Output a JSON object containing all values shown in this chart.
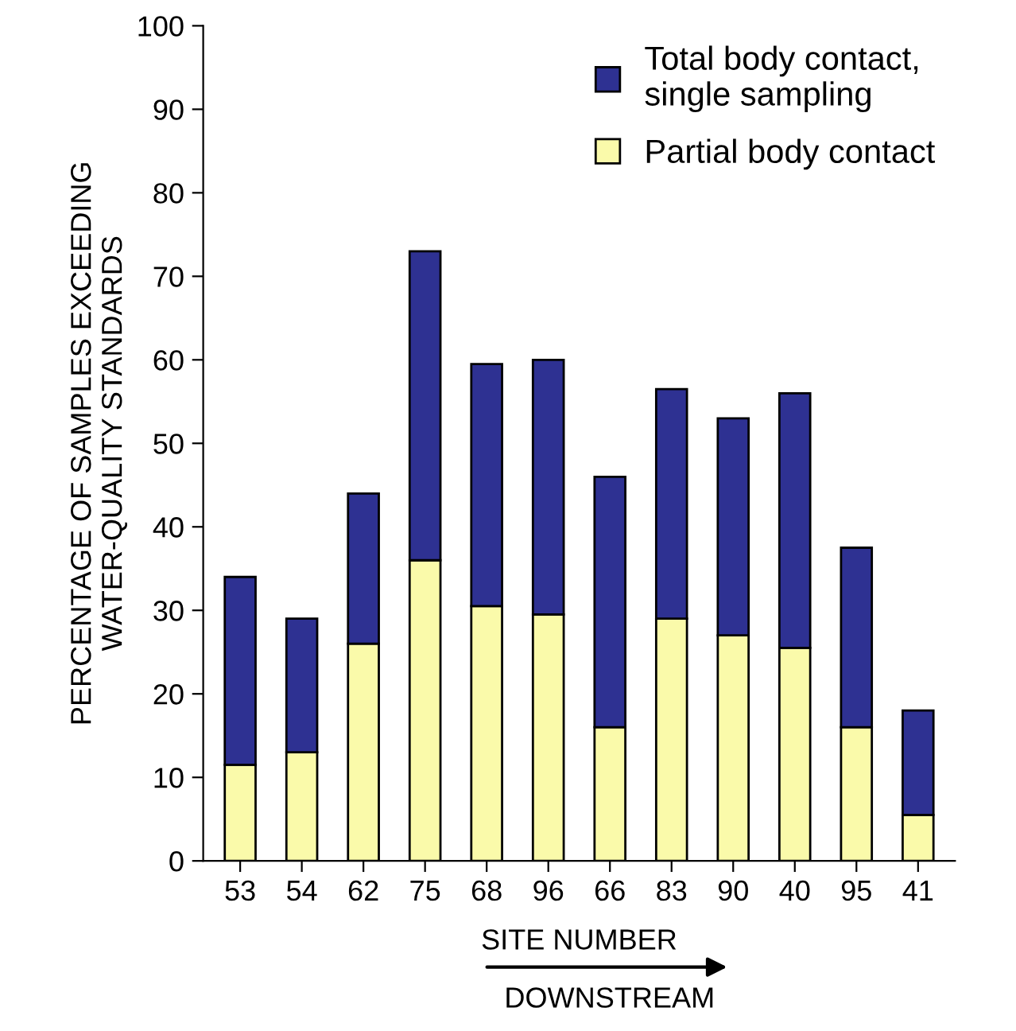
{
  "chart_data": {
    "type": "bar",
    "stacked": true,
    "xlabel": "SITE NUMBER",
    "ylabel": "PERCENTAGE OF SAMPLES EXCEEDING\nWATER-QUALITY STANDARDS",
    "categories": [
      "53",
      "54",
      "62",
      "75",
      "68",
      "96",
      "66",
      "83",
      "90",
      "40",
      "95",
      "41"
    ],
    "series": [
      {
        "name": "Partial body contact",
        "color": "#fafaaa",
        "values": [
          11.5,
          13,
          26,
          36,
          30.5,
          29.5,
          16,
          29,
          27,
          25.5,
          16,
          5.5
        ]
      },
      {
        "name": "Total body contact,\nsingle sampling",
        "color": "#2e3192",
        "values": [
          22.5,
          16,
          18,
          37,
          29,
          30.5,
          30,
          27.5,
          26,
          30.5,
          21.5,
          12.5
        ]
      }
    ],
    "ylim": [
      0,
      100
    ],
    "yticks": [
      0,
      10,
      20,
      30,
      40,
      50,
      60,
      70,
      80,
      90,
      100
    ],
    "grid": false,
    "legend": "top right",
    "annotations": [
      "DOWNSTREAM"
    ]
  }
}
